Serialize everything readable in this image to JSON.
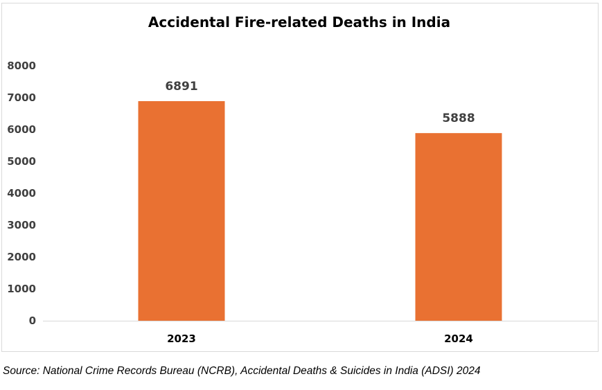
{
  "chart_data": {
    "type": "bar",
    "title": "Accidental Fire-related Deaths in India",
    "categories": [
      "2023",
      "2024"
    ],
    "values": [
      6891,
      5888
    ],
    "data_labels": [
      "6891",
      "5888"
    ],
    "ylim": [
      0,
      8000
    ],
    "yticks": [
      0,
      1000,
      2000,
      3000,
      4000,
      5000,
      6000,
      7000,
      8000
    ],
    "ytick_labels": [
      "0",
      "1000",
      "2000",
      "3000",
      "4000",
      "5000",
      "6000",
      "7000",
      "8000"
    ],
    "xlabel": "",
    "ylabel": "",
    "bar_color": "#E97132",
    "grid": false,
    "legend": "none"
  },
  "source": "Source: National Crime Records Bureau (NCRB), Accidental Deaths & Suicides in India (ADSI) 2024"
}
